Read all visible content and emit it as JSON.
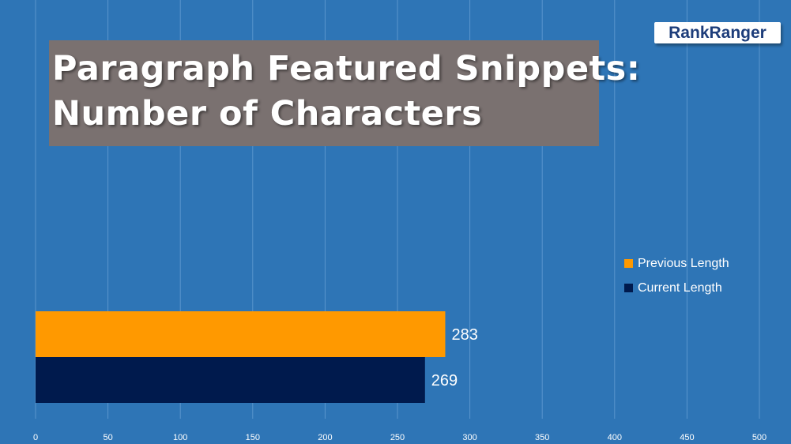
{
  "title": {
    "line1": "Paragraph Featured Snippets:",
    "line2": "Number of Characters"
  },
  "logo": {
    "part1": "Rank",
    "part2": "Ranger"
  },
  "colors": {
    "background": "#2e75b6",
    "title_box": "#7a7170",
    "previous": "#ff9900",
    "current": "#001a4d",
    "gridline": "#5a95cc"
  },
  "chart_data": {
    "type": "bar",
    "orientation": "horizontal",
    "xlim": [
      0,
      500
    ],
    "x_ticks": [
      "0",
      "50",
      "100",
      "150",
      "200",
      "250",
      "300",
      "350",
      "400",
      "450",
      "500"
    ],
    "grid": true,
    "legend_position": "right",
    "series": [
      {
        "name": "Previous Length",
        "value": 283,
        "label": "283",
        "color": "#ff9900"
      },
      {
        "name": "Current Length",
        "value": 269,
        "label": "269",
        "color": "#001a4d"
      }
    ]
  }
}
